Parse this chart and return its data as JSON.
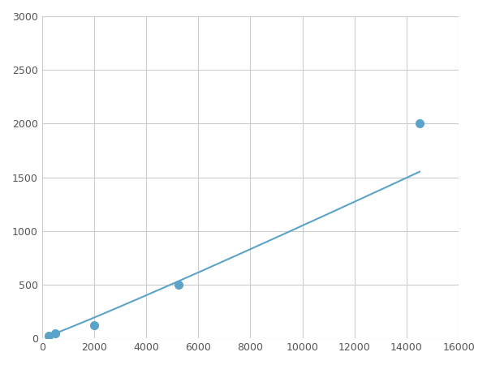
{
  "x_data": [
    250,
    500,
    2000,
    5250,
    14500
  ],
  "y_data": [
    25,
    50,
    125,
    500,
    2000
  ],
  "line_color": "#5ba3c9",
  "marker_color": "#5ba3c9",
  "marker_size": 7,
  "linewidth": 1.5,
  "xlim": [
    0,
    16000
  ],
  "ylim": [
    0,
    3000
  ],
  "xticks": [
    0,
    2000,
    4000,
    6000,
    8000,
    10000,
    12000,
    14000,
    16000
  ],
  "yticks": [
    0,
    500,
    1000,
    1500,
    2000,
    2500,
    3000
  ],
  "grid_color": "#cccccc",
  "background_color": "#ffffff",
  "figsize": [
    6.0,
    4.5
  ],
  "dpi": 100
}
